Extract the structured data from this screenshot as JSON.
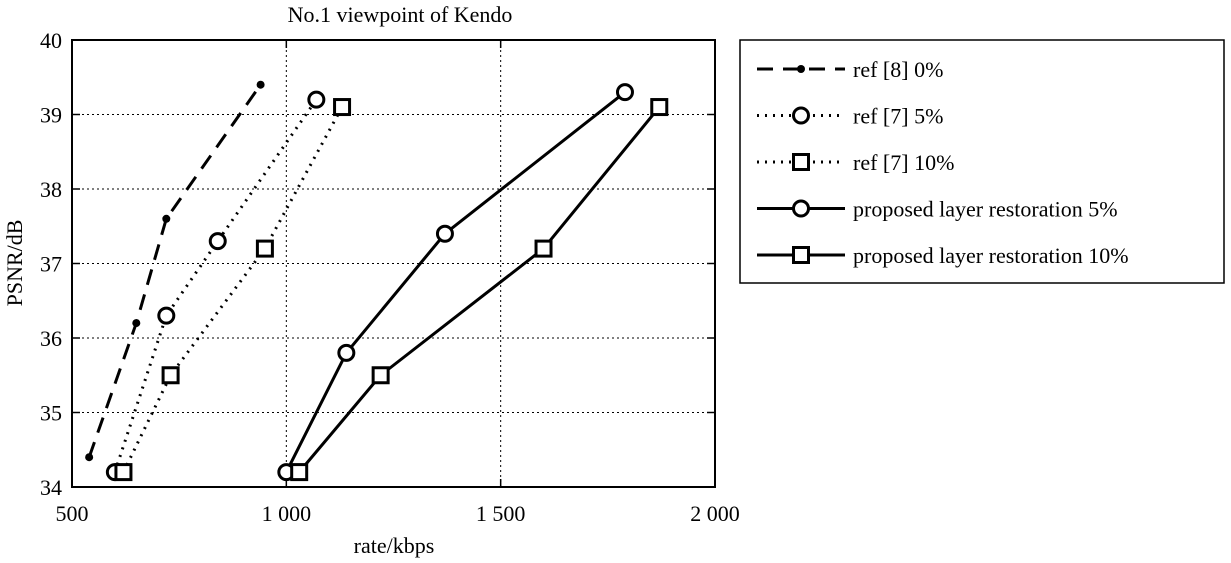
{
  "chart_data": {
    "type": "line",
    "title": "No.1 viewpoint of Kendo",
    "xlabel": "rate/kbps",
    "ylabel": "PSNR/dB",
    "xlim": [
      500,
      2000
    ],
    "ylim": [
      34,
      40
    ],
    "xticks": [
      500,
      1000,
      1500,
      2000
    ],
    "xtick_labels": [
      "500",
      "1 000",
      "1 500",
      "2 000"
    ],
    "yticks": [
      34,
      35,
      36,
      37,
      38,
      39,
      40
    ],
    "ytick_labels": [
      "34",
      "35",
      "36",
      "37",
      "38",
      "39",
      "40"
    ],
    "grid": true,
    "legend_position": "outside-right",
    "series": [
      {
        "name": "ref [8] 0%",
        "line": "dashed",
        "marker": "dot",
        "x": [
          540,
          650,
          720,
          940
        ],
        "y": [
          34.4,
          36.2,
          37.6,
          39.4
        ]
      },
      {
        "name": "ref [7] 5%",
        "line": "dotted",
        "marker": "circle",
        "x": [
          600,
          720,
          840,
          1070
        ],
        "y": [
          34.2,
          36.3,
          37.3,
          39.2
        ]
      },
      {
        "name": "ref [7] 10%",
        "line": "dotted",
        "marker": "square",
        "x": [
          620,
          730,
          950,
          1130
        ],
        "y": [
          34.2,
          35.5,
          37.2,
          39.1
        ]
      },
      {
        "name": "proposed layer restoration 5%",
        "line": "solid",
        "marker": "circle",
        "x": [
          1000,
          1140,
          1370,
          1790
        ],
        "y": [
          34.2,
          35.8,
          37.4,
          39.3
        ]
      },
      {
        "name": "proposed layer restoration 10%",
        "line": "solid",
        "marker": "square",
        "x": [
          1030,
          1220,
          1600,
          1870
        ],
        "y": [
          34.2,
          35.5,
          37.2,
          39.1
        ]
      }
    ]
  }
}
